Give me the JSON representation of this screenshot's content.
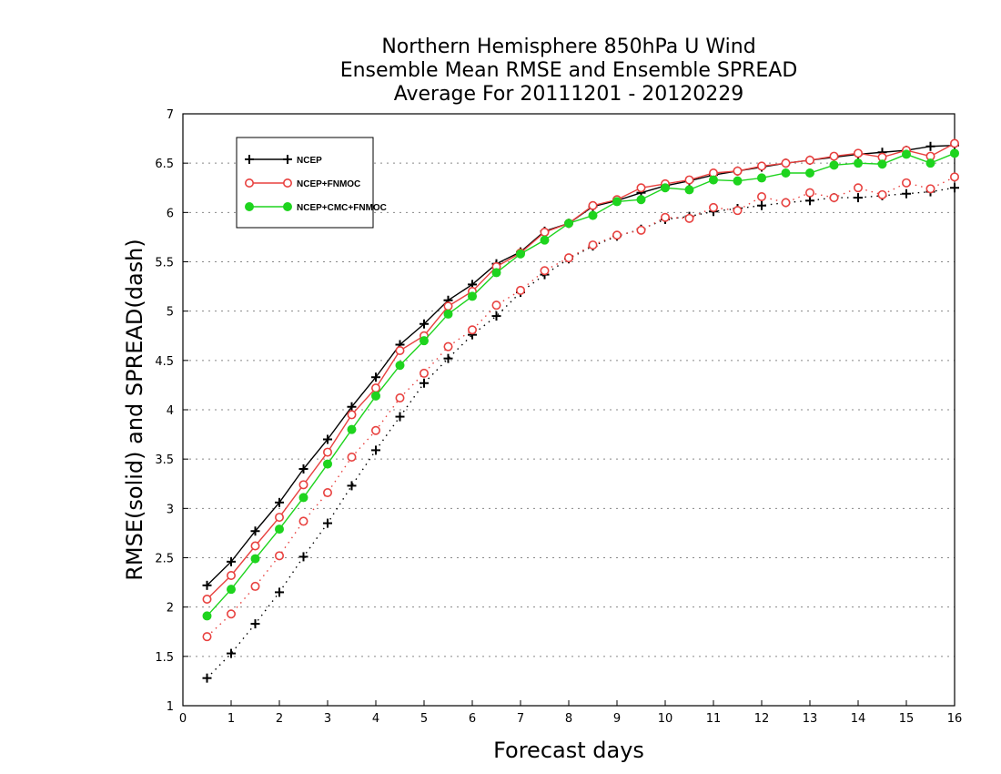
{
  "chart_data": {
    "type": "line",
    "title": [
      "Northern Hemisphere 850hPa U Wind",
      "Ensemble Mean RMSE and Ensemble SPREAD",
      "Average For 20111201 - 20120229"
    ],
    "xlabel": "Forecast days",
    "ylabel": "RMSE(solid) and SPREAD(dash)",
    "xlim": [
      0,
      16
    ],
    "ylim": [
      1,
      7
    ],
    "xticks": [
      0,
      1,
      2,
      3,
      4,
      5,
      6,
      7,
      8,
      9,
      10,
      11,
      12,
      13,
      14,
      15,
      16
    ],
    "yticks": [
      1,
      1.5,
      2,
      2.5,
      3,
      3.5,
      4,
      4.5,
      5,
      5.5,
      6,
      6.5,
      7
    ],
    "grid": "dotted-horizontal",
    "legend_position": "top-left",
    "x": [
      0.5,
      1,
      1.5,
      2,
      2.5,
      3,
      3.5,
      4,
      4.5,
      5,
      5.5,
      6,
      6.5,
      7,
      7.5,
      8,
      8.5,
      9,
      9.5,
      10,
      10.5,
      11,
      11.5,
      12,
      12.5,
      13,
      13.5,
      14,
      14.5,
      15,
      15.5,
      16
    ],
    "series": [
      {
        "name": "NCEP",
        "kind": "rmse",
        "color": "#000000",
        "marker": "plus",
        "values": [
          2.22,
          2.46,
          2.77,
          3.06,
          3.4,
          3.7,
          4.03,
          4.33,
          4.66,
          4.87,
          5.11,
          5.27,
          5.48,
          5.6,
          5.81,
          5.89,
          6.06,
          6.12,
          6.2,
          6.27,
          6.32,
          6.38,
          6.42,
          6.46,
          6.5,
          6.53,
          6.56,
          6.59,
          6.61,
          6.63,
          6.67,
          6.68
        ]
      },
      {
        "name": "NCEP+FNMOC",
        "kind": "rmse",
        "color": "#e8413f",
        "marker": "circle-open",
        "values": [
          2.08,
          2.32,
          2.62,
          2.91,
          3.24,
          3.57,
          3.95,
          4.22,
          4.6,
          4.75,
          5.05,
          5.2,
          5.45,
          5.59,
          5.8,
          5.89,
          6.07,
          6.13,
          6.25,
          6.29,
          6.33,
          6.4,
          6.42,
          6.47,
          6.5,
          6.53,
          6.57,
          6.6,
          6.56,
          6.63,
          6.57,
          6.7
        ]
      },
      {
        "name": "NCEP+CMC+FNMOC",
        "kind": "rmse",
        "color": "#1ed41e",
        "marker": "circle-filled",
        "values": [
          1.91,
          2.18,
          2.49,
          2.79,
          3.11,
          3.45,
          3.8,
          4.14,
          4.45,
          4.7,
          4.97,
          5.15,
          5.39,
          5.58,
          5.72,
          5.89,
          5.97,
          6.11,
          6.13,
          6.25,
          6.23,
          6.33,
          6.32,
          6.35,
          6.4,
          6.4,
          6.48,
          6.5,
          6.49,
          6.59,
          6.5,
          6.6
        ]
      },
      {
        "name": "NCEP",
        "kind": "spread",
        "color": "#000000",
        "marker": "plus",
        "values": [
          1.28,
          1.53,
          1.83,
          2.15,
          2.51,
          2.85,
          3.23,
          3.59,
          3.93,
          4.27,
          4.52,
          4.76,
          4.95,
          5.19,
          5.37,
          5.53,
          5.66,
          5.76,
          5.83,
          5.93,
          5.96,
          6.01,
          6.04,
          6.07,
          6.1,
          6.12,
          6.15,
          6.15,
          6.17,
          6.19,
          6.21,
          6.25
        ]
      },
      {
        "name": "NCEP+FNMOC",
        "kind": "spread",
        "color": "#e8413f",
        "marker": "circle-open",
        "values": [
          1.7,
          1.93,
          2.21,
          2.52,
          2.87,
          3.16,
          3.52,
          3.79,
          4.12,
          4.37,
          4.64,
          4.81,
          5.06,
          5.21,
          5.41,
          5.54,
          5.67,
          5.77,
          5.82,
          5.95,
          5.94,
          6.05,
          6.02,
          6.16,
          6.1,
          6.2,
          6.15,
          6.25,
          6.18,
          6.3,
          6.24,
          6.36
        ]
      }
    ],
    "legend": [
      {
        "label": "NCEP",
        "color": "#000000",
        "marker": "plus"
      },
      {
        "label": "NCEP+FNMOC",
        "color": "#e8413f",
        "marker": "circle-open"
      },
      {
        "label": "NCEP+CMC+FNMOC",
        "color": "#1ed41e",
        "marker": "circle-filled"
      }
    ]
  }
}
